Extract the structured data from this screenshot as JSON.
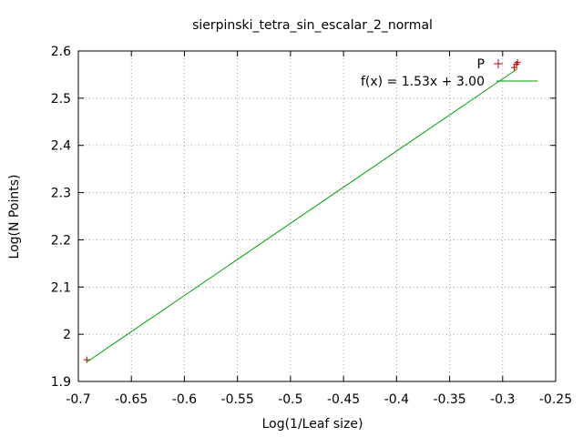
{
  "chart_data": {
    "type": "scatter",
    "title": "sierpinski_tetra_sin_escalar_2_normal",
    "xlabel": "Log(1/Leaf size)",
    "ylabel": "Log(N Points)",
    "xlim": [
      -0.7,
      -0.25
    ],
    "ylim": [
      1.9,
      2.6
    ],
    "grid": true,
    "legend_position": "top-right",
    "x_ticks": [
      "-0.7",
      "-0.65",
      "-0.6",
      "-0.55",
      "-0.5",
      "-0.45",
      "-0.4",
      "-0.35",
      "-0.3",
      "-0.25"
    ],
    "y_ticks": [
      "1.9",
      "2",
      "2.1",
      "2.2",
      "2.3",
      "2.4",
      "2.5",
      "2.6"
    ],
    "series": [
      {
        "name": "P",
        "kind": "points",
        "marker": "+",
        "color": "#c00000",
        "x": [
          -0.692,
          -0.289,
          -0.287,
          -0.286
        ],
        "y": [
          1.946,
          2.565,
          2.572,
          2.576
        ]
      },
      {
        "name": "f(x) = 1.53x + 3.00",
        "kind": "line",
        "color": "#00a000",
        "slope": 1.53,
        "intercept": 3.0,
        "x_range": [
          -0.692,
          -0.286
        ]
      }
    ]
  }
}
